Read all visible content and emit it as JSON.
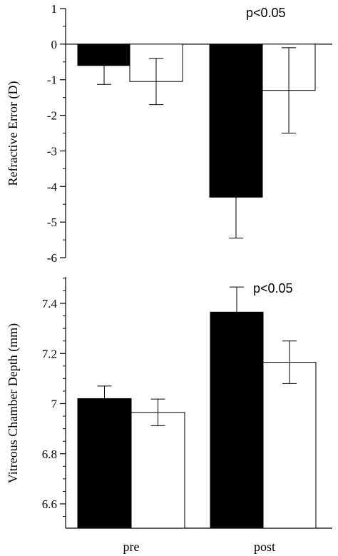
{
  "chart_data": [
    {
      "type": "bar",
      "ylabel": "Refractive Error (D)",
      "categories": [
        "pre",
        "post"
      ],
      "ylim": [
        -6,
        1
      ],
      "yticks": [
        "1",
        "0",
        "-1",
        "-2",
        "-3",
        "-4",
        "-5",
        "-6"
      ],
      "ytick_values": [
        1,
        0,
        -1,
        -2,
        -3,
        -4,
        -5,
        -6
      ],
      "series": [
        {
          "fill": "#000000",
          "values": [
            -0.6,
            -4.3
          ],
          "errors": [
            0.53,
            1.15
          ]
        },
        {
          "fill": "#ffffff",
          "values": [
            -1.05,
            -1.3
          ],
          "errors": [
            0.65,
            1.2
          ]
        }
      ],
      "annotation": "p<0.05",
      "annotation_anchor": {
        "category": "post",
        "y": 0.85
      }
    },
    {
      "type": "bar",
      "ylabel": "Vitreous Chamber Depth (mm)",
      "categories": [
        "pre",
        "post"
      ],
      "ylim": [
        6.5,
        7.5
      ],
      "yticks": [
        "7.4",
        "7.2",
        "7",
        "6.8",
        "6.6"
      ],
      "ytick_values": [
        7.4,
        7.2,
        7.0,
        6.8,
        6.6
      ],
      "series": [
        {
          "fill": "#000000",
          "values": [
            7.02,
            7.365
          ],
          "errors": [
            0.05,
            0.1
          ]
        },
        {
          "fill": "#ffffff",
          "values": [
            6.965,
            7.165
          ],
          "errors": [
            0.053,
            0.085
          ]
        }
      ],
      "annotation": "p<0.05",
      "annotation_anchor": {
        "category": "post",
        "y": 7.44
      }
    }
  ]
}
